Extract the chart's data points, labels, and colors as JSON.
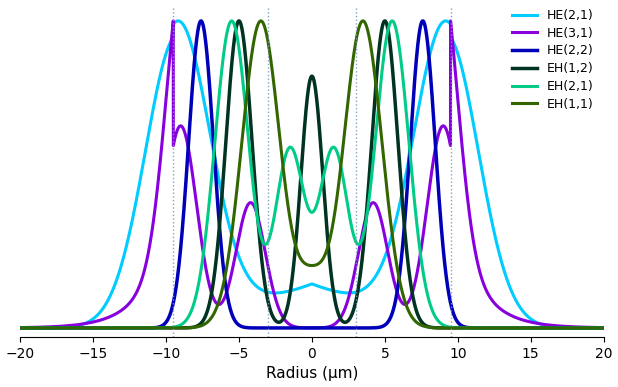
{
  "title": "",
  "xlabel": "Radius (μm)",
  "xlim": [
    -20,
    20
  ],
  "ylim": [
    -0.03,
    1.05
  ],
  "xticks": [
    -20,
    -15,
    -10,
    -5,
    0,
    5,
    10,
    15,
    20
  ],
  "layer_boundaries": [
    -9.5,
    -3.0,
    3.0,
    9.5
  ],
  "modes": [
    {
      "label": "HE(2,1)",
      "color": "#00CCFF"
    },
    {
      "label": "HE(3,1)",
      "color": "#8800DD"
    },
    {
      "label": "HE(2,2)",
      "color": "#0000BB"
    },
    {
      "label": "EH(1,2)",
      "color": "#003322"
    },
    {
      "label": "EH(2,1)",
      "color": "#00CC88"
    },
    {
      "label": "EH(1,1)",
      "color": "#336600"
    }
  ],
  "background_color": "#ffffff",
  "dashed_line_color": "#7799BB"
}
